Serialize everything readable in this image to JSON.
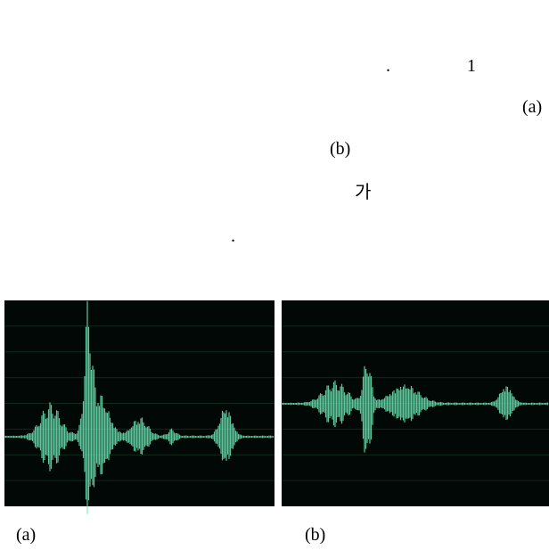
{
  "text": {
    "lines": [
      ".",
      "1",
      "(a)",
      "(b)",
      "가",
      "."
    ]
  },
  "figures": [
    {
      "caption": "(a)"
    },
    {
      "caption": "(b)"
    }
  ]
}
